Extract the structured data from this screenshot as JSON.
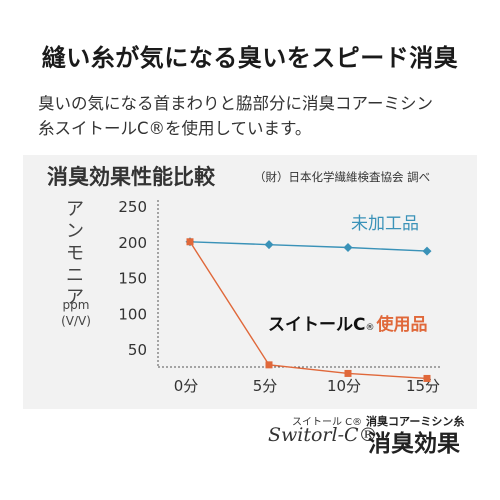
{
  "headline": "縫い糸が気になる臭いをスピード消臭",
  "description": {
    "line1": "臭いの気になる首まわりと脇部分に消臭コアーミシン",
    "line2": "糸スイトールC®を使用しています。"
  },
  "chart_data": {
    "type": "line",
    "title": "消臭効果性能比較",
    "source": "（財）日本化学繊維検査協会 調べ",
    "ylabel": "アンモニア",
    "yunit": [
      "ppm",
      "(V/V)"
    ],
    "ylim": [
      0,
      250
    ],
    "yticks": [
      250,
      200,
      150,
      100,
      50
    ],
    "categories": [
      "0分",
      "5分",
      "10分",
      "15分"
    ],
    "series": [
      {
        "name": "未加工品",
        "values": [
          200,
          196,
          192,
          187
        ],
        "color": "#3a92b8",
        "marker": "diamond"
      },
      {
        "name": "スイトールC®使用品",
        "values": [
          200,
          28,
          16,
          9
        ],
        "color": "#e0683a",
        "marker": "square"
      }
    ],
    "annotations": {
      "series2_prefix": "スイトールC",
      "series2_mark": "®",
      "series2_suffix": "使用品"
    },
    "grid": false
  },
  "brand": {
    "kana": "スイトール C®",
    "logo": "Switorl-C®",
    "sub": "消臭コアーミシン糸",
    "main": "消臭効果"
  },
  "colors": {
    "panel_bg": "#f2f2f2",
    "untreated": "#3a92b8",
    "treated": "#e0683a"
  }
}
